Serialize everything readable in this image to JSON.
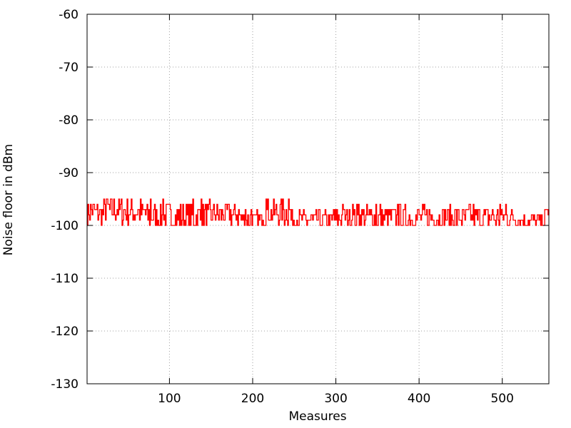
{
  "chart_data": {
    "type": "line",
    "title": "",
    "xlabel": "Measures",
    "ylabel": "Noise floor in dBm",
    "xlim": [
      1,
      556
    ],
    "ylim": [
      -130,
      -60
    ],
    "xticks": [
      100,
      200,
      300,
      400,
      500
    ],
    "yticks": [
      -130,
      -120,
      -110,
      -100,
      -90,
      -80,
      -70,
      -60
    ],
    "xtick_labels": [
      "100",
      "200",
      "300",
      "400",
      "500"
    ],
    "ytick_labels": [
      "-130",
      "-120",
      "-110",
      "-100",
      "-90",
      "-80",
      "-70",
      "-60"
    ],
    "grid": true,
    "series": [
      {
        "color": "#ff0000",
        "segments": [
          {
            "x_start": 1,
            "x_end": 20,
            "avg": -97.5,
            "min": -100,
            "max": -96
          },
          {
            "x_start": 20,
            "x_end": 40,
            "avg": -97.0,
            "min": -99,
            "max": -95
          },
          {
            "x_start": 40,
            "x_end": 70,
            "avg": -97.5,
            "min": -100,
            "max": -95
          },
          {
            "x_start": 70,
            "x_end": 150,
            "avg": -98.5,
            "min": -100,
            "max": -95
          },
          {
            "x_start": 150,
            "x_end": 185,
            "avg": -98.0,
            "min": -100,
            "max": -96
          },
          {
            "x_start": 185,
            "x_end": 210,
            "avg": -99.0,
            "min": -100,
            "max": -97
          },
          {
            "x_start": 210,
            "x_end": 245,
            "avg": -97.5,
            "min": -100,
            "max": -95
          },
          {
            "x_start": 245,
            "x_end": 300,
            "avg": -99.0,
            "min": -100,
            "max": -97
          },
          {
            "x_start": 300,
            "x_end": 520,
            "avg": -98.5,
            "min": -100,
            "max": -96
          },
          {
            "x_start": 520,
            "x_end": 550,
            "avg": -99.0,
            "min": -100,
            "max": -98
          },
          {
            "x_start": 550,
            "x_end": 556,
            "avg": -97.5,
            "min": -98,
            "max": -97
          }
        ]
      }
    ]
  }
}
